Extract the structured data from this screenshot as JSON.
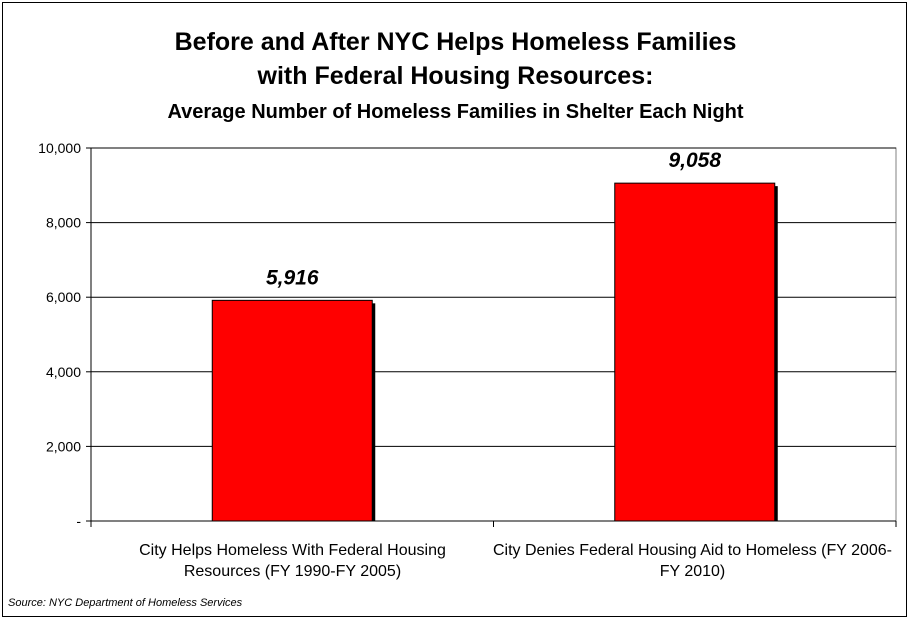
{
  "chart_data": {
    "type": "bar",
    "title": "Before and After NYC Helps Homeless Families",
    "title_line2": "with Federal Housing Resources:",
    "subtitle": "Average Number of Homeless Families in Shelter Each Night",
    "categories": [
      "City Helps Homeless With Federal Housing Resources (FY 1990-FY 2005)",
      "City Denies Federal Housing Aid to Homeless (FY 2006-FY 2010)"
    ],
    "values": [
      5916,
      9058
    ],
    "data_labels": [
      "5,916",
      "9,058"
    ],
    "ylim": [
      0,
      10000
    ],
    "yticks": [
      0,
      2000,
      4000,
      6000,
      8000,
      10000
    ],
    "ytick_labels": [
      "-",
      "2,000",
      "4,000",
      "6,000",
      "8,000",
      "10,000"
    ],
    "grid": true,
    "bar_color": "#ff0000",
    "source": "Source:  NYC Department of Homeless Services"
  }
}
